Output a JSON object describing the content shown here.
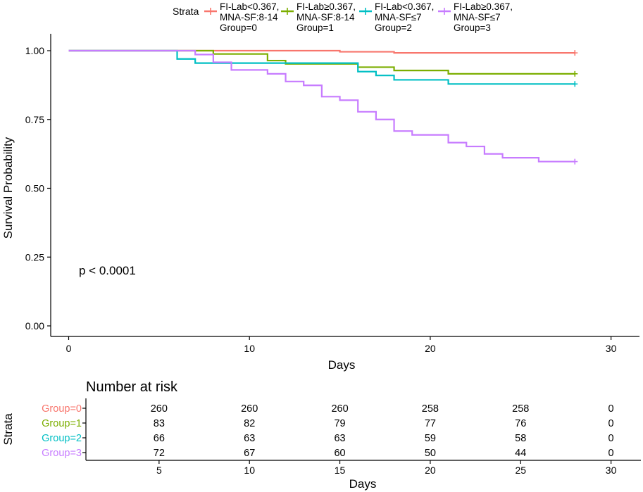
{
  "chart_data": {
    "type": "line",
    "subtype": "kaplan-meier",
    "xlabel": "Days",
    "ylabel": "Survival Probability",
    "xlim": [
      -1.5,
      31.5
    ],
    "ylim": [
      0,
      1
    ],
    "x_ticks": [
      "0",
      "10",
      "20",
      "30"
    ],
    "y_ticks": [
      "0.00",
      "0.25",
      "0.50",
      "0.75",
      "1.00"
    ],
    "legend_title": "Strata",
    "legend_position": "top",
    "pvalue_text": "p < 0.0001",
    "series": [
      {
        "name": "Group=0",
        "legend_lines": [
          "FI-Lab<0.367,",
          "MNA-SF:8-14",
          "Group=0"
        ],
        "color": "#F8766D",
        "steps": [
          [
            0,
            1.0
          ],
          [
            15,
            0.996
          ],
          [
            18,
            0.992
          ],
          [
            28,
            0.992
          ]
        ],
        "censor": [
          [
            28,
            0.992
          ]
        ]
      },
      {
        "name": "Group=1",
        "legend_lines": [
          "FI-Lab≥0.367,",
          "MNA-SF:8-14",
          "Group=1"
        ],
        "color": "#7CAE00",
        "steps": [
          [
            0,
            1.0
          ],
          [
            8,
            0.988
          ],
          [
            11,
            0.964
          ],
          [
            12,
            0.952
          ],
          [
            16,
            0.94
          ],
          [
            18,
            0.928
          ],
          [
            19,
            0.928
          ],
          [
            19.5,
            0.928
          ],
          [
            19.5,
            0.927
          ]
        ],
        "steps_full": [
          [
            0,
            1.0
          ],
          [
            8,
            0.988
          ],
          [
            11,
            0.964
          ],
          [
            12,
            0.952
          ],
          [
            16,
            0.94
          ],
          [
            18,
            0.928
          ],
          [
            19,
            0.928
          ],
          [
            21,
            0.916
          ],
          [
            28,
            0.916
          ]
        ],
        "censor": [
          [
            28,
            0.916
          ]
        ]
      },
      {
        "name": "Group=2",
        "legend_lines": [
          "FI-Lab<0.367,",
          "MNA-SF≤7",
          "Group=2"
        ],
        "color": "#00BFC4",
        "steps": [
          [
            0,
            1.0
          ],
          [
            6,
            0.97
          ],
          [
            7,
            0.955
          ],
          [
            16,
            0.924
          ],
          [
            17,
            0.91
          ],
          [
            18,
            0.894
          ],
          [
            21,
            0.879
          ],
          [
            28,
            0.879
          ]
        ],
        "censor": [
          [
            28,
            0.879
          ]
        ]
      },
      {
        "name": "Group=3",
        "legend_lines": [
          "FI-Lab≥0.367,",
          "MNA-SF≤7",
          "Group=3"
        ],
        "color": "#C77CFF",
        "steps": [
          [
            0,
            1.0
          ],
          [
            7,
            0.986
          ],
          [
            8,
            0.958
          ],
          [
            9,
            0.93
          ],
          [
            11,
            0.916
          ],
          [
            12,
            0.888
          ],
          [
            13,
            0.874
          ],
          [
            14,
            0.833
          ],
          [
            15,
            0.82
          ],
          [
            16,
            0.778
          ],
          [
            17,
            0.75
          ],
          [
            18,
            0.708
          ],
          [
            19,
            0.694
          ],
          [
            21,
            0.666
          ],
          [
            22,
            0.652
          ],
          [
            23,
            0.625
          ],
          [
            24,
            0.611
          ],
          [
            26,
            0.597
          ],
          [
            28,
            0.597
          ]
        ],
        "censor": [
          [
            28,
            0.597
          ]
        ]
      }
    ]
  },
  "risk_table": {
    "title": "Number at risk",
    "ylabel": "Strata",
    "xlabel": "Days",
    "x_values": [
      5,
      10,
      15,
      20,
      25,
      30
    ],
    "x_ticks": [
      "5",
      "10",
      "15",
      "20",
      "25",
      "30"
    ],
    "rows": [
      {
        "label": "Group=0",
        "color": "#F8766D",
        "values": [
          "260",
          "260",
          "260",
          "258",
          "258",
          "0"
        ]
      },
      {
        "label": "Group=1",
        "color": "#7CAE00",
        "values": [
          "83",
          "82",
          "79",
          "77",
          "76",
          "0"
        ]
      },
      {
        "label": "Group=2",
        "color": "#00BFC4",
        "values": [
          "66",
          "63",
          "63",
          "59",
          "58",
          "0"
        ]
      },
      {
        "label": "Group=3",
        "color": "#C77CFF",
        "values": [
          "72",
          "67",
          "60",
          "50",
          "44",
          "0"
        ]
      }
    ]
  }
}
